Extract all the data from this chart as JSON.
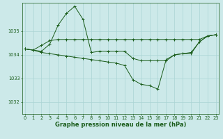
{
  "title": "Graphe pression niveau de la mer (hPa)",
  "bg_color": "#cce9e9",
  "grid_color": "#aad4d4",
  "line_color": "#1a5c1a",
  "x_ticks": [
    0,
    1,
    2,
    3,
    4,
    5,
    6,
    7,
    8,
    9,
    10,
    11,
    12,
    13,
    14,
    15,
    16,
    17,
    18,
    19,
    20,
    21,
    22,
    23
  ],
  "y_ticks": [
    1032,
    1033,
    1034,
    1035
  ],
  "ylim": [
    1031.5,
    1036.2
  ],
  "xlim": [
    -0.3,
    23.3
  ],
  "series": [
    {
      "x": [
        0,
        1,
        2,
        3,
        4,
        5,
        6,
        7,
        8,
        9,
        10,
        11,
        12,
        13,
        14,
        15,
        16,
        17,
        18,
        19,
        20,
        21,
        22,
        23
      ],
      "y": [
        1034.25,
        1034.2,
        1034.15,
        1034.45,
        1035.25,
        1035.75,
        1036.05,
        1035.5,
        1034.1,
        1034.15,
        1034.15,
        1034.15,
        1034.15,
        1033.85,
        1033.75,
        1033.75,
        1033.75,
        1033.75,
        1034.0,
        1034.05,
        1034.1,
        1034.55,
        1034.8,
        1034.85
      ]
    },
    {
      "x": [
        0,
        1,
        2,
        3,
        4,
        5,
        6,
        7,
        8,
        9,
        10,
        11,
        12,
        13,
        14,
        15,
        16,
        17,
        18,
        19,
        20,
        21,
        22,
        23
      ],
      "y": [
        1034.25,
        1034.2,
        1034.4,
        1034.6,
        1034.65,
        1034.65,
        1034.65,
        1034.65,
        1034.65,
        1034.65,
        1034.65,
        1034.65,
        1034.65,
        1034.65,
        1034.65,
        1034.65,
        1034.65,
        1034.65,
        1034.65,
        1034.65,
        1034.65,
        1034.65,
        1034.8,
        1034.85
      ]
    },
    {
      "x": [
        0,
        1,
        2,
        3,
        4,
        5,
        6,
        7,
        8,
        9,
        10,
        11,
        12,
        13,
        14,
        15,
        16,
        17,
        18,
        19,
        20,
        21,
        22,
        23
      ],
      "y": [
        1034.25,
        1034.2,
        1034.1,
        1034.05,
        1034.0,
        1033.95,
        1033.9,
        1033.85,
        1033.8,
        1033.75,
        1033.7,
        1033.65,
        1033.55,
        1032.95,
        1032.75,
        1032.7,
        1032.55,
        1033.8,
        1034.0,
        1034.05,
        1034.05,
        1034.55,
        1034.8,
        1034.85
      ]
    }
  ],
  "title_fontsize": 6.0,
  "tick_fontsize": 4.8
}
